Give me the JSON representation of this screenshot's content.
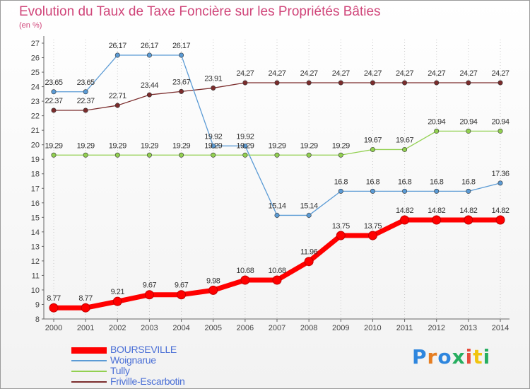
{
  "header": {
    "title": "Evolution du Taux de Taxe Foncière sur les Propriétés Bâties",
    "unit": "(en %)"
  },
  "logo": {
    "text": "Proxiti",
    "letter_colors": [
      "#2e86de",
      "#e67e22",
      "#2e86de",
      "#27ae60",
      "#e74c3c",
      "#f1c40f",
      "#27ae60"
    ]
  },
  "chart_data": {
    "type": "line",
    "title": "Evolution du Taux de Taxe Foncière sur les Propriétés Bâties",
    "ylabel": "(en %)",
    "xlabel": "",
    "x": [
      "2000",
      "2001",
      "2002",
      "2003",
      "2004",
      "2005",
      "2006",
      "2007",
      "2008",
      "2009",
      "2010",
      "2011",
      "2012",
      "2013",
      "2014"
    ],
    "ylim": [
      8,
      27
    ],
    "yticks": [
      "8",
      "9",
      "10",
      "11",
      "12",
      "13",
      "14",
      "15",
      "16",
      "17",
      "18",
      "19",
      "20",
      "21",
      "22",
      "23",
      "24",
      "25",
      "26",
      "27"
    ],
    "grid": "vertical dotted",
    "legend": "bottom-left",
    "series": [
      {
        "name": "BOURSEVILLE",
        "color": "#ff0000",
        "values": [
          8.77,
          8.77,
          9.21,
          9.67,
          9.67,
          9.98,
          10.68,
          10.68,
          11.96,
          13.75,
          13.75,
          14.82,
          14.82,
          14.82,
          14.82
        ],
        "labels": [
          "8.77",
          "8.77",
          "9.21",
          "9.67",
          "9.67",
          "9.98",
          "10.68",
          "10.68",
          "11.96",
          "13.75",
          "13.75",
          "14.82",
          "14.82",
          "14.82",
          "14.82"
        ]
      },
      {
        "name": "Woignarue",
        "color": "#5b9bd5",
        "values": [
          23.65,
          23.65,
          26.17,
          26.17,
          26.17,
          19.92,
          19.92,
          15.14,
          15.14,
          16.8,
          16.8,
          16.8,
          16.8,
          16.8,
          17.36
        ],
        "labels": [
          "23.65",
          "23.65",
          "26.17",
          "26.17",
          "26.17",
          "19.92",
          "19.92",
          "15.14",
          "15.14",
          "16.8",
          "16.8",
          "16.8",
          "16.8",
          "16.8",
          "17.36"
        ]
      },
      {
        "name": "Tully",
        "color": "#92d050",
        "values": [
          19.29,
          19.29,
          19.29,
          19.29,
          19.29,
          19.29,
          19.29,
          19.29,
          19.29,
          19.29,
          19.67,
          19.67,
          20.94,
          20.94,
          20.94
        ],
        "labels": [
          "19.29",
          "19.29",
          "19.29",
          "19.29",
          "19.29",
          "19.29",
          "19.29",
          "19.29",
          "19.29",
          "19.29",
          "19.67",
          "19.67",
          "20.94",
          "20.94",
          "20.94"
        ]
      },
      {
        "name": "Friville-Escarbotin",
        "color": "#7b2c2c",
        "values": [
          22.37,
          22.37,
          22.71,
          23.44,
          23.67,
          23.91,
          24.27,
          24.27,
          24.27,
          24.27,
          24.27,
          24.27,
          24.27,
          24.27,
          24.27
        ],
        "labels": [
          "22.37",
          "22.37",
          "22.71",
          "23.44",
          "23.67",
          "23.91",
          "24.27",
          "24.27",
          "24.27",
          "24.27",
          "24.27",
          "24.27",
          "24.27",
          "24.27",
          "24.27"
        ]
      }
    ]
  }
}
